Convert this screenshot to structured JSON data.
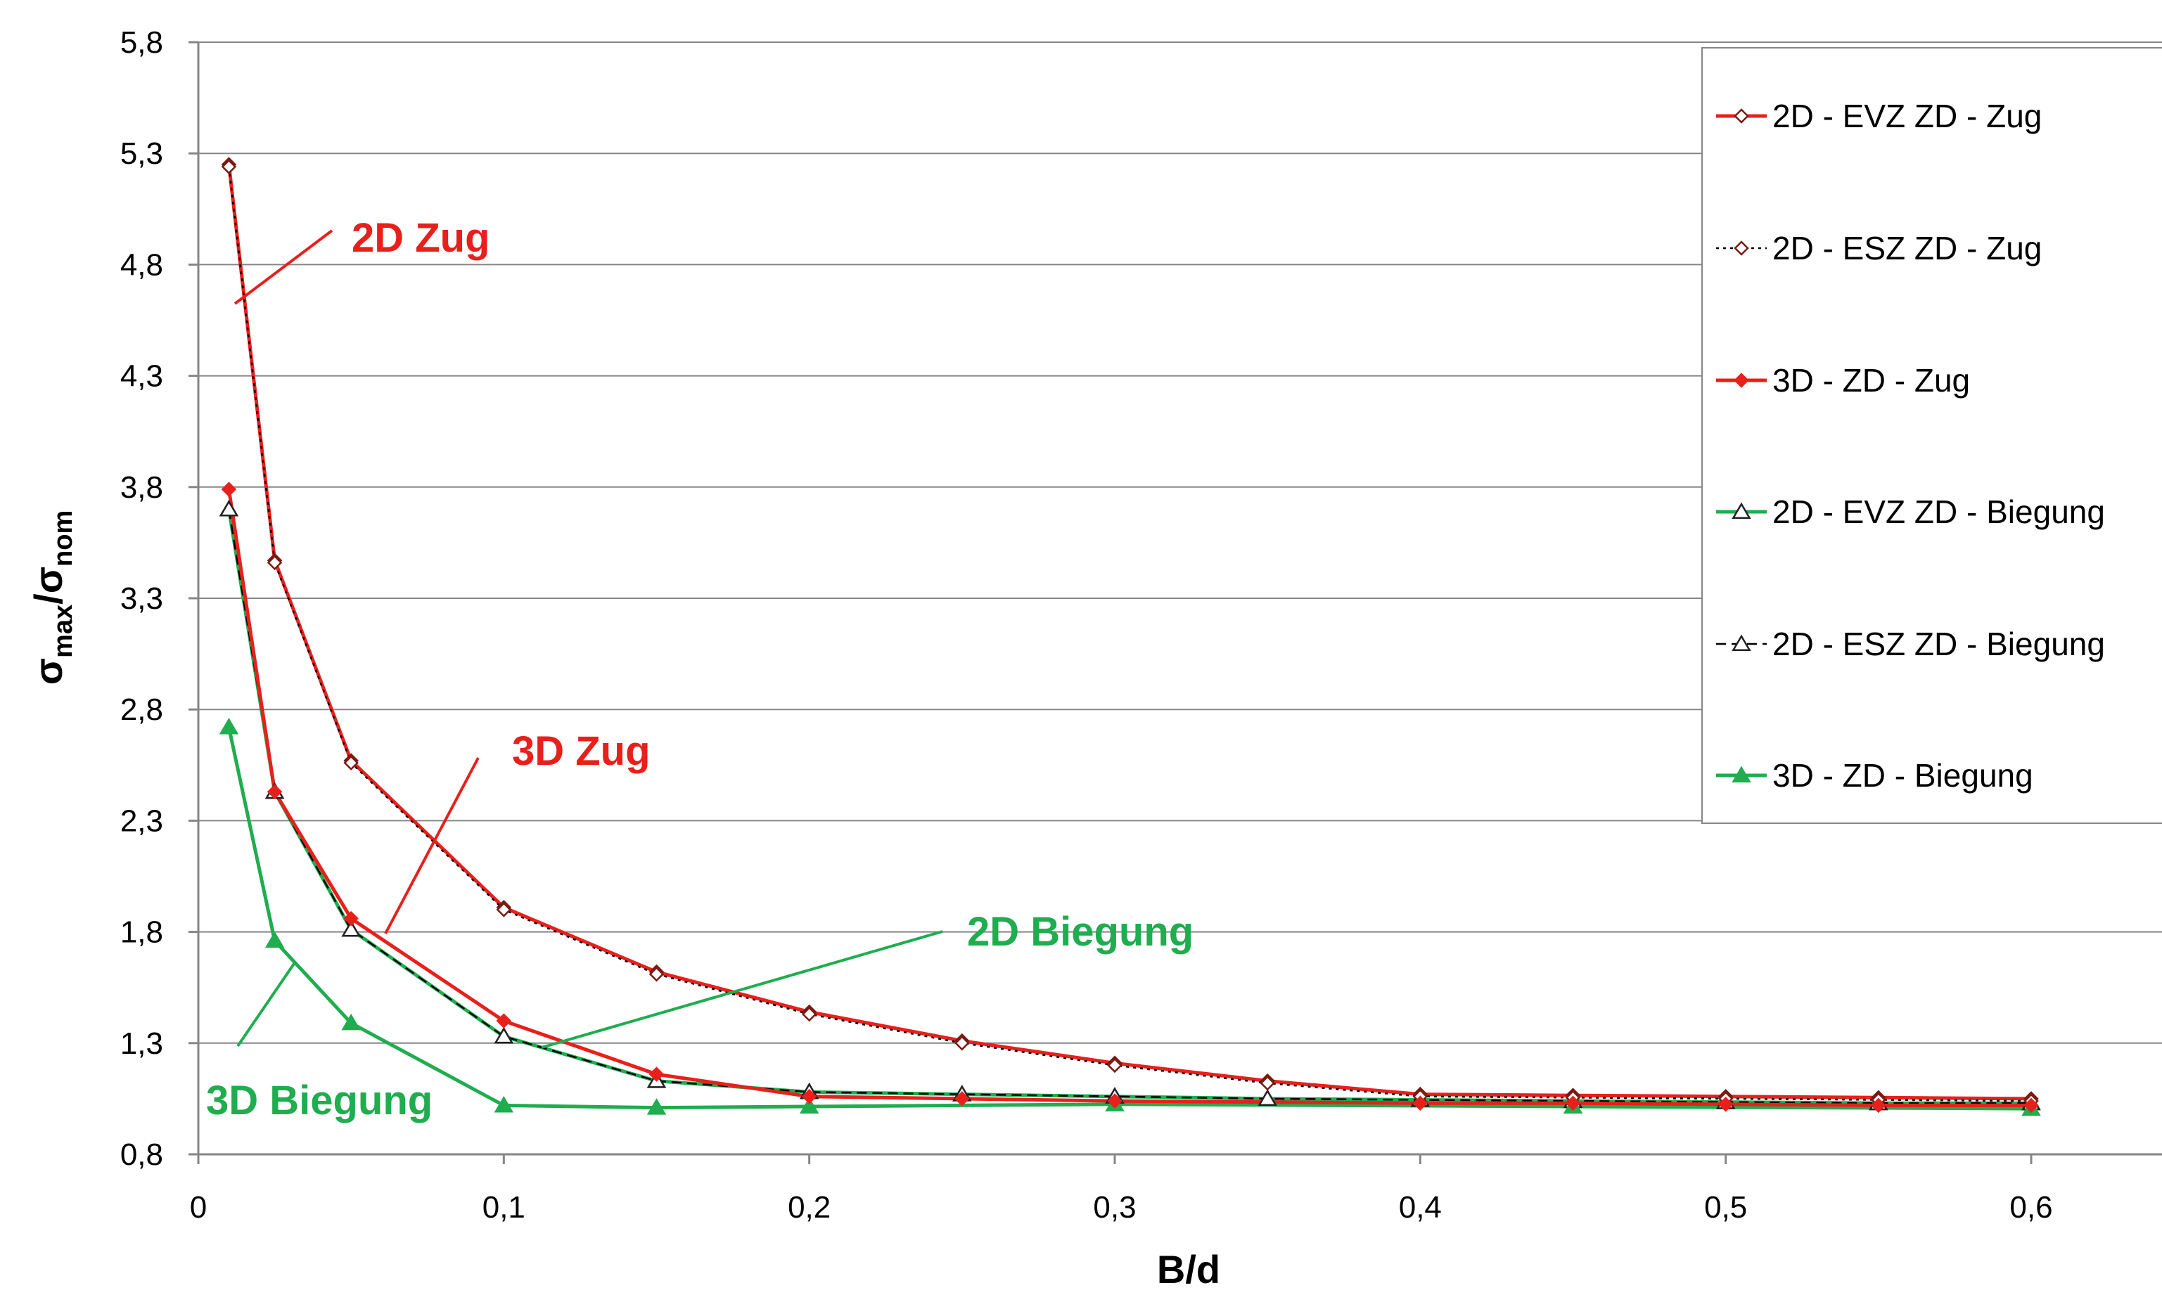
{
  "chart_data": {
    "type": "line",
    "xlabel": "B/d",
    "ylabel_main": "σ",
    "ylabel_sub1": "max",
    "ylabel_slash": "/σ",
    "ylabel_sub2": "nom",
    "xlim": [
      0,
      0.6
    ],
    "ylim": [
      0.8,
      5.8
    ],
    "xticks": [
      0,
      0.1,
      0.2,
      0.3,
      0.4,
      0.5,
      0.6
    ],
    "xtick_labels": [
      "0",
      "0,1",
      "0,2",
      "0,3",
      "0,4",
      "0,5",
      "0,6"
    ],
    "yticks": [
      0.8,
      1.3,
      1.8,
      2.3,
      2.8,
      3.3,
      3.8,
      4.3,
      4.8,
      5.3,
      5.8
    ],
    "ytick_labels": [
      "0,8",
      "1,3",
      "1,8",
      "2,3",
      "2,8",
      "3,3",
      "3,8",
      "4,3",
      "4,8",
      "5,3",
      "5,8"
    ],
    "grid": "horizontal",
    "legend_position": "top-right",
    "series": [
      {
        "name": "2D - EVZ ZD - Zug",
        "color": "#e8201c",
        "dash": "solid",
        "marker": "diamond-open",
        "x": [
          0.01,
          0.025,
          0.05,
          0.1,
          0.15,
          0.2,
          0.25,
          0.3,
          0.35,
          0.4,
          0.45,
          0.5,
          0.55,
          0.6
        ],
        "y": [
          5.25,
          3.47,
          2.57,
          1.91,
          1.62,
          1.44,
          1.31,
          1.21,
          1.13,
          1.07,
          1.065,
          1.06,
          1.055,
          1.05
        ]
      },
      {
        "name": "2D - ESZ ZD - Zug",
        "color": "#000000",
        "dash": "dotted",
        "marker": "diamond-open",
        "x": [
          0.01,
          0.025,
          0.05,
          0.1,
          0.15,
          0.2,
          0.25,
          0.3,
          0.35,
          0.4,
          0.45,
          0.5,
          0.55,
          0.6
        ],
        "y": [
          5.24,
          3.46,
          2.56,
          1.9,
          1.61,
          1.43,
          1.3,
          1.2,
          1.12,
          1.06,
          1.055,
          1.05,
          1.045,
          1.04
        ]
      },
      {
        "name": "3D - ZD - Zug",
        "color": "#e8201c",
        "dash": "solid",
        "marker": "diamond-filled",
        "x": [
          0.01,
          0.025,
          0.05,
          0.1,
          0.15,
          0.2,
          0.25,
          0.3,
          0.4,
          0.45,
          0.5,
          0.55,
          0.6
        ],
        "y": [
          3.79,
          2.43,
          1.86,
          1.4,
          1.16,
          1.06,
          1.05,
          1.04,
          1.03,
          1.03,
          1.025,
          1.02,
          1.02
        ]
      },
      {
        "name": "2D - EVZ ZD - Biegung",
        "color": "#1fad4f",
        "dash": "solid",
        "marker": "triangle-open",
        "x": [
          0.01,
          0.025,
          0.05,
          0.1,
          0.15,
          0.2,
          0.25,
          0.3,
          0.35,
          0.4,
          0.45,
          0.5,
          0.55,
          0.6
        ],
        "y": [
          3.7,
          2.43,
          1.81,
          1.33,
          1.13,
          1.08,
          1.07,
          1.06,
          1.05,
          1.045,
          1.04,
          1.035,
          1.03,
          1.03
        ]
      },
      {
        "name": "2D - ESZ ZD - Biegung",
        "color": "#000000",
        "dash": "dashed",
        "marker": "triangle-open",
        "x": [
          0.01,
          0.025,
          0.05,
          0.1,
          0.15,
          0.2,
          0.25,
          0.3,
          0.35,
          0.4,
          0.45,
          0.5,
          0.55,
          0.6
        ],
        "y": [
          3.7,
          2.43,
          1.81,
          1.33,
          1.13,
          1.08,
          1.07,
          1.06,
          1.05,
          1.045,
          1.04,
          1.035,
          1.03,
          1.03
        ]
      },
      {
        "name": "3D - ZD - Biegung",
        "color": "#1fad4f",
        "dash": "solid",
        "marker": "triangle-filled",
        "x": [
          0.01,
          0.025,
          0.05,
          0.1,
          0.15,
          0.2,
          0.3,
          0.45,
          0.6
        ],
        "y": [
          2.72,
          1.76,
          1.39,
          1.02,
          1.01,
          1.015,
          1.025,
          1.015,
          1.005
        ]
      }
    ],
    "annotations": [
      {
        "text": "2D Zug",
        "color": "#e8201c"
      },
      {
        "text": "3D Zug",
        "color": "#e8201c"
      },
      {
        "text": "2D Biegung",
        "color": "#1fad4f"
      },
      {
        "text": "3D Biegung",
        "color": "#1fad4f"
      }
    ]
  }
}
